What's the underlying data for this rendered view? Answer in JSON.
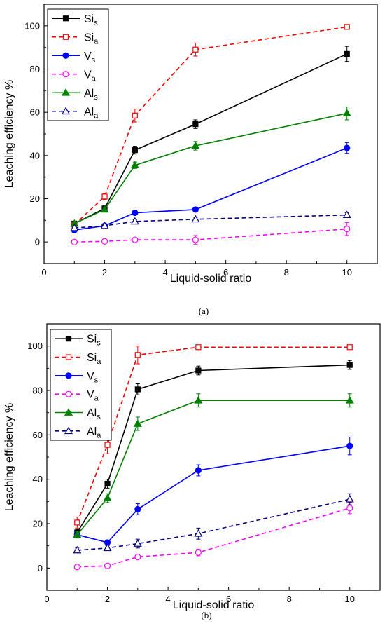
{
  "chart_data": [
    {
      "type": "line",
      "caption": "(a)",
      "xlabel": "Liquid-solid ratio",
      "ylabel": "Leaching efficiency %",
      "xlim": [
        0,
        11
      ],
      "ylim": [
        -10,
        110
      ],
      "xticks": [
        0,
        2,
        4,
        6,
        8,
        10
      ],
      "yticks": [
        0,
        20,
        40,
        60,
        80,
        100
      ],
      "legend_position": "top-left",
      "x": [
        1,
        2,
        3,
        5,
        10
      ],
      "series": [
        {
          "name": "Si",
          "sub": "s",
          "color": "#000000",
          "dash": "solid",
          "marker": "square",
          "filled": true,
          "values": [
            8.5,
            15.5,
            42.5,
            54.5,
            87
          ],
          "errors": [
            1,
            1.5,
            1.8,
            2,
            3.5
          ]
        },
        {
          "name": "Si",
          "sub": "a",
          "color": "#ff0000",
          "dash": "dashed",
          "marker": "square",
          "filled": false,
          "values": [
            8,
            21,
            58.5,
            89,
            99.5
          ],
          "errors": [
            1,
            1.5,
            3,
            3,
            1
          ]
        },
        {
          "name": "V",
          "sub": "s",
          "color": "#0000ff",
          "dash": "solid",
          "marker": "circle",
          "filled": true,
          "values": [
            5.5,
            7.5,
            13.5,
            15,
            43.5
          ],
          "errors": [
            1,
            0.8,
            1,
            1,
            2.5
          ]
        },
        {
          "name": "V",
          "sub": "a",
          "color": "#ff00ff",
          "dash": "dashed",
          "marker": "circle",
          "filled": false,
          "values": [
            0,
            0.3,
            1,
            1,
            6
          ],
          "errors": [
            0.5,
            0.5,
            0.8,
            2,
            3
          ]
        },
        {
          "name": "Al",
          "sub": "s",
          "color": "#008000",
          "dash": "solid",
          "marker": "triangle",
          "filled": true,
          "values": [
            8.5,
            15,
            35.5,
            44.5,
            59.5
          ],
          "errors": [
            1,
            1,
            1.5,
            2,
            3
          ]
        },
        {
          "name": "Al",
          "sub": "a",
          "color": "#000080",
          "dash": "dashed",
          "marker": "triangle",
          "filled": false,
          "values": [
            6.5,
            7.5,
            9.5,
            10.5,
            12.5
          ],
          "errors": [
            0.5,
            0.5,
            0.8,
            0.8,
            1
          ]
        }
      ]
    },
    {
      "type": "line",
      "caption": "(b)",
      "xlabel": "Liquid-solid ratio",
      "ylabel": "Leaching efficiency %",
      "xlim": [
        0,
        11
      ],
      "ylim": [
        -10,
        110
      ],
      "xticks": [
        0,
        2,
        4,
        6,
        8,
        10
      ],
      "yticks": [
        0,
        20,
        40,
        60,
        80,
        100
      ],
      "legend_position": "top-left",
      "x": [
        1,
        2,
        3,
        5,
        10
      ],
      "series": [
        {
          "name": "Si",
          "sub": "s",
          "color": "#000000",
          "dash": "solid",
          "marker": "square",
          "filled": true,
          "values": [
            16,
            38,
            80.5,
            89,
            91.5
          ],
          "errors": [
            1.5,
            2,
            2.5,
            2,
            2
          ]
        },
        {
          "name": "Si",
          "sub": "a",
          "color": "#ff0000",
          "dash": "dashed",
          "marker": "square",
          "filled": false,
          "values": [
            20.5,
            55.5,
            96,
            99.5,
            99.5
          ],
          "errors": [
            2.5,
            4,
            4,
            1,
            1
          ]
        },
        {
          "name": "V",
          "sub": "s",
          "color": "#0000ff",
          "dash": "solid",
          "marker": "circle",
          "filled": true,
          "values": [
            15,
            11.5,
            26.5,
            44,
            55
          ],
          "errors": [
            1.5,
            1,
            2.5,
            2.5,
            4
          ]
        },
        {
          "name": "V",
          "sub": "a",
          "color": "#ff00ff",
          "dash": "dashed",
          "marker": "circle",
          "filled": false,
          "values": [
            0.5,
            1,
            5,
            7,
            27
          ],
          "errors": [
            0.5,
            0.8,
            1,
            1.5,
            2.5
          ]
        },
        {
          "name": "Al",
          "sub": "s",
          "color": "#008000",
          "dash": "solid",
          "marker": "triangle",
          "filled": true,
          "values": [
            15,
            31.5,
            65,
            75.5,
            75.5
          ],
          "errors": [
            1.5,
            2,
            3,
            3,
            3
          ]
        },
        {
          "name": "Al",
          "sub": "a",
          "color": "#000080",
          "dash": "dashed",
          "marker": "triangle",
          "filled": false,
          "values": [
            8,
            9,
            11,
            15.5,
            31
          ],
          "errors": [
            1,
            1,
            2,
            2.5,
            2.5
          ]
        }
      ]
    }
  ]
}
